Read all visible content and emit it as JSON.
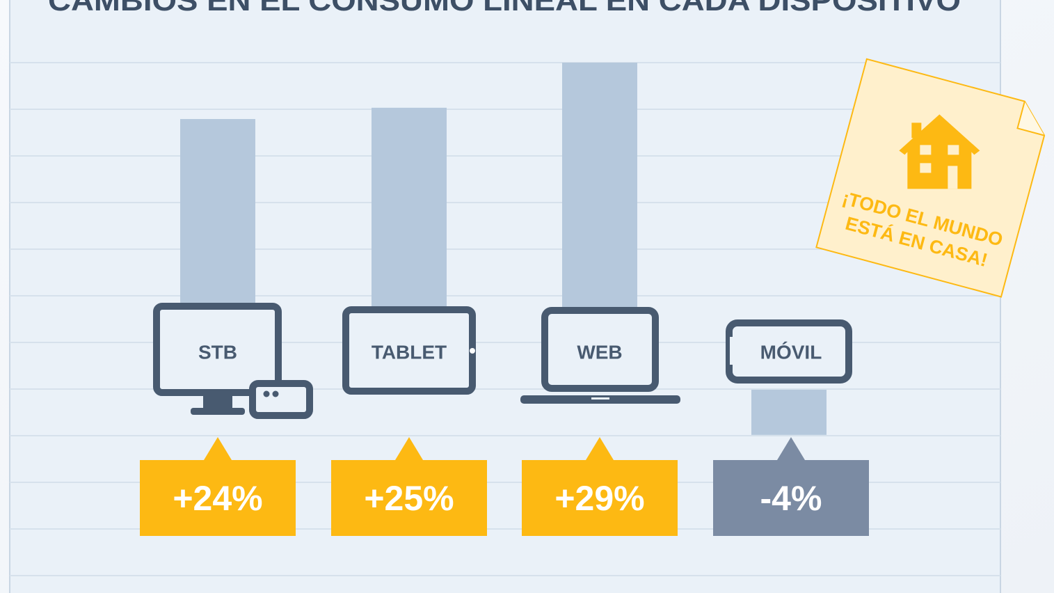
{
  "chart_data": {
    "type": "bar",
    "title": "CAMBIOS EN EL CONSUMO LINEAL EN CADA DISPOSITIVO",
    "categories": [
      "STB",
      "TABLET",
      "WEB",
      "MÓVIL"
    ],
    "values": [
      24,
      25,
      29,
      -4
    ],
    "value_labels": [
      "+24%",
      "+25%",
      "+29%",
      "-4%"
    ],
    "color": "#b5c8dc",
    "annotation": [
      "¡TODO EL MUNDO",
      "ESTÁ EN CASA!"
    ]
  }
}
